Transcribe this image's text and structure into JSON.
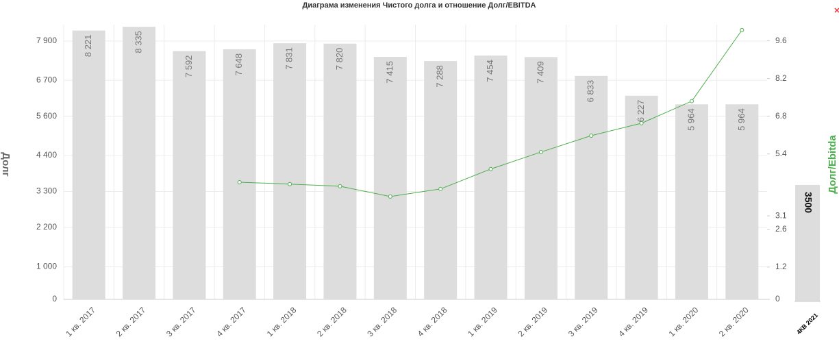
{
  "chart_data": [
    {
      "type": "bar-line",
      "title": "Диаграма изменения Чистого долга и отношение Долг/EBITDA",
      "y_label": "Долг",
      "y2_label": "Долг/Ebitda",
      "categories": [
        "1 кв. 2017",
        "2 кв. 2017",
        "3 кв. 2017",
        "4 кв. 2017",
        "1 кв. 2018",
        "2 кв. 2018",
        "3 кв. 2018",
        "4 кв. 2018",
        "1 кв. 2019",
        "2 кв. 2019",
        "3 кв. 2019",
        "4 кв. 2019",
        "1 кв. 2020",
        "2 кв. 2020"
      ],
      "series": [
        {
          "type": "bar",
          "color": "#dddddd",
          "values": [
            8221,
            8335,
            7592,
            7648,
            7831,
            7820,
            7415,
            7288,
            7454,
            7409,
            6833,
            6227,
            5964,
            5964
          ],
          "value_labels": [
            "8 221",
            "8 335",
            "7 592",
            "7 648",
            "7 831",
            "7 820",
            "7 415",
            "7 288",
            "7 454",
            "7 409",
            "6 833",
            "6 227",
            "5 964",
            "5 964"
          ]
        },
        {
          "type": "line",
          "axis": "y2",
          "color": "#4cae4c",
          "values": [
            null,
            null,
            null,
            4.35,
            4.28,
            4.2,
            3.82,
            4.1,
            4.84,
            5.47,
            6.08,
            6.54,
            7.36,
            10.0
          ]
        }
      ],
      "ylim": [
        0,
        8400
      ],
      "yticks": [
        0,
        {
          "value": 1000,
          "label": "1 000"
        },
        {
          "value": 2200,
          "label": "2 200"
        },
        {
          "value": 3300,
          "label": "3 300"
        },
        {
          "value": 4400,
          "label": "4 400"
        },
        {
          "value": 5600,
          "label": "5 600"
        },
        {
          "value": 6700,
          "label": "6 700"
        },
        {
          "value": 7900,
          "label": "7 900"
        }
      ],
      "y2lim": [
        0,
        10.2
      ],
      "y2ticks": [
        0,
        1.2,
        2.6,
        3.1,
        5.4,
        6.8,
        8.2,
        9.6
      ],
      "grid": true
    },
    {
      "type": "bar",
      "categories": [
        "4КВ 2021"
      ],
      "values": [
        3500
      ],
      "color": "#dddddd"
    }
  ]
}
